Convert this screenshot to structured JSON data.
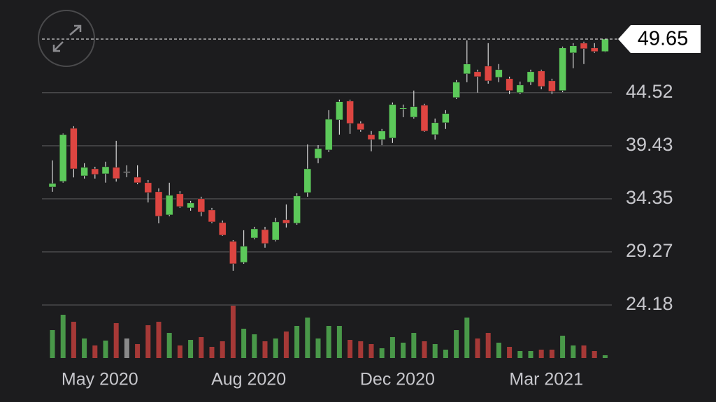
{
  "chart_data": {
    "type": "candlestick",
    "categories": [
      null,
      null,
      null,
      null,
      "May 2020",
      null,
      null,
      null,
      null,
      null,
      null,
      null,
      null,
      null,
      null,
      null,
      null,
      null,
      "Aug 2020",
      null,
      null,
      null,
      null,
      null,
      null,
      null,
      null,
      null,
      null,
      null,
      null,
      null,
      "Dec 2020",
      null,
      null,
      null,
      null,
      null,
      null,
      null,
      null,
      null,
      null,
      null,
      null,
      null,
      "Mar 2021",
      null,
      null,
      null,
      null,
      null,
      null
    ],
    "open": [
      35.48,
      36.02,
      41.1,
      36.55,
      37.22,
      36.75,
      37.36,
      36.95,
      36.42,
      35.89,
      35.02,
      32.81,
      34.82,
      33.48,
      34.35,
      33.28,
      32.07,
      30.27,
      28.26,
      30.6,
      31.4,
      30.4,
      32.34,
      32.01,
      34.95,
      38.23,
      39.03,
      41.91,
      43.71,
      41.57,
      40.5,
      40.03,
      40.17,
      42.98,
      42.17,
      43.31,
      40.5,
      41.64,
      44.05,
      46.32,
      46.52,
      47.06,
      45.99,
      45.85,
      44.52,
      45.52,
      46.59,
      45.65,
      44.72,
      48.33,
      49.26,
      48.8,
      48.46
    ],
    "high": [
      38.03,
      40.6,
      41.3,
      37.76,
      37.42,
      37.9,
      39.9,
      37.56,
      37.56,
      36.15,
      35.35,
      35.89,
      35.08,
      34.15,
      34.55,
      33.48,
      32.27,
      30.4,
      31.34,
      31.67,
      31.67,
      32.54,
      33.81,
      34.88,
      39.56,
      39.49,
      42.84,
      43.85,
      43.85,
      41.77,
      40.84,
      41.04,
      43.58,
      43.38,
      44.72,
      43.45,
      42.04,
      42.84,
      45.72,
      49.53,
      46.72,
      49.26,
      47.26,
      46.05,
      45.58,
      46.72,
      46.72,
      45.85,
      48.93,
      49.26,
      49.4,
      49.26,
      49.65
    ],
    "low": [
      35.02,
      35.9,
      36.4,
      36.29,
      36.29,
      35.9,
      36.0,
      36.42,
      35.75,
      34.0,
      32.0,
      32.68,
      33.48,
      33.21,
      32.68,
      32.01,
      30.8,
      27.46,
      28.13,
      30.47,
      29.67,
      30.27,
      31.6,
      31.87,
      34.55,
      37.76,
      38.83,
      40.5,
      40.57,
      40.77,
      38.9,
      39.49,
      39.7,
      42.17,
      42.04,
      40.77,
      40.03,
      41.04,
      43.91,
      45.52,
      44.52,
      45.38,
      45.52,
      44.38,
      44.38,
      45.25,
      44.85,
      44.38,
      44.58,
      46.86,
      47.26,
      48.33,
      48.4
    ],
    "close": [
      35.82,
      40.5,
      37.22,
      37.36,
      36.69,
      37.42,
      36.29,
      36.95,
      35.89,
      34.95,
      32.68,
      34.68,
      33.61,
      33.95,
      33.08,
      32.14,
      30.87,
      28.13,
      29.8,
      31.47,
      30.07,
      32.14,
      32.01,
      34.62,
      37.22,
      39.16,
      41.97,
      43.65,
      41.57,
      40.97,
      40.03,
      40.84,
      43.38,
      43.05,
      43.18,
      40.84,
      41.64,
      42.51,
      45.52,
      47.26,
      46.05,
      45.65,
      46.72,
      44.72,
      45.25,
      46.52,
      45.12,
      44.65,
      48.8,
      49.0,
      48.73,
      48.46,
      49.65
    ],
    "volume": [
      40,
      62,
      52,
      28,
      18,
      25,
      50,
      28,
      20,
      47,
      52,
      36,
      18,
      26,
      30,
      16,
      24,
      75,
      42,
      34,
      24,
      28,
      38,
      46,
      58,
      28,
      46,
      46,
      26,
      24,
      20,
      14,
      30,
      22,
      36,
      24,
      20,
      12,
      40,
      58,
      28,
      36,
      22,
      16,
      10,
      10,
      12,
      12,
      32,
      18,
      18,
      10,
      4
    ],
    "volume_lim": [
      0,
      80
    ],
    "ylim": [
      24.18,
      49.65
    ],
    "yticks": [
      24.18,
      29.27,
      34.35,
      39.43,
      44.52
    ],
    "last_price": 49.65,
    "grid": true,
    "colors": {
      "up": "#5cc95a",
      "down": "#dd4541",
      "flat": "#b5b5b5"
    }
  }
}
